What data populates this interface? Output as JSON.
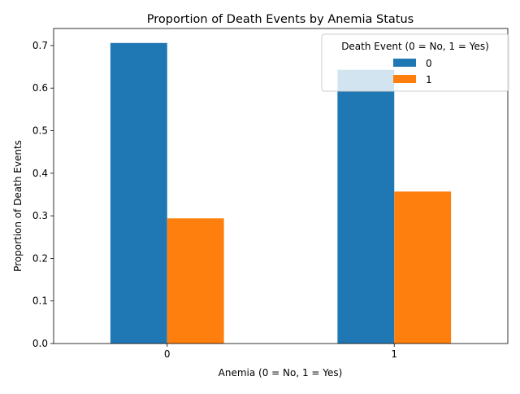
{
  "chart_data": {
    "type": "bar",
    "title": "Proportion of Death Events by Anemia Status",
    "xlabel": "Anemia (0 = No, 1 = Yes)",
    "ylabel": "Proportion of Death Events",
    "categories": [
      "0",
      "1"
    ],
    "series": [
      {
        "name": "0",
        "values": [
          0.706,
          0.643
        ],
        "color": "#1f77b4"
      },
      {
        "name": "1",
        "values": [
          0.294,
          0.357
        ],
        "color": "#ff7f0e"
      }
    ],
    "ylim": [
      0,
      0.74
    ],
    "yticks": [
      0.0,
      0.1,
      0.2,
      0.3,
      0.4,
      0.5,
      0.6,
      0.7
    ],
    "grid": false,
    "legend": {
      "title": "Death Event (0 = No, 1 = Yes)",
      "placement": "top-right"
    }
  }
}
